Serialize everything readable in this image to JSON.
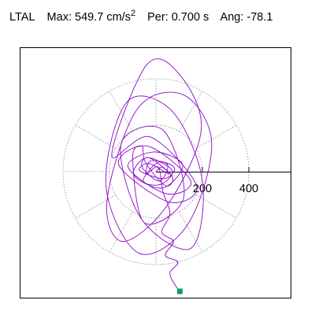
{
  "header": {
    "station": "LTAL",
    "max_label": "Max:",
    "max_value": "549.7",
    "max_unit": "cm/s",
    "max_unit_exp": "2",
    "period_label": "Per:",
    "period_value": "0.700 s",
    "angle_label": "Ang:",
    "angle_value": "-78.1"
  },
  "chart_data": {
    "type": "line",
    "plot_kind": "orbit",
    "title": "",
    "xlabel": "",
    "ylabel": "",
    "axis_ticks": [
      200,
      400
    ],
    "tick_labels": [
      "200",
      "400"
    ],
    "rings": [
      200,
      400
    ],
    "radial_spokes_deg": [
      30,
      60,
      90,
      120,
      150,
      180,
      210,
      240,
      270,
      300,
      330
    ],
    "xlim": [
      -600,
      600
    ],
    "ylim": [
      -530,
      530
    ],
    "grid": true,
    "max": 549.7,
    "angle_deg": -78.1,
    "end_marker": [
      103,
      -515
    ],
    "colors": {
      "trace": "#8a08c8",
      "marker": "#0e9a74",
      "grid": "#888888",
      "axis": "#000000"
    },
    "series": [
      {
        "x": [
          0,
          25,
          55,
          -30,
          -70,
          35,
          80,
          10,
          -55,
          20,
          70,
          -40,
          -95,
          30,
          115,
          -10,
          -120,
          45,
          150,
          -35,
          -160,
          55,
          175,
          -25,
          -190,
          -40,
          100,
          195,
          45,
          -145,
          -210,
          -80,
          120,
          240,
          135,
          -75,
          -215,
          -125,
          70,
          200,
          150,
          -65,
          -150,
          30,
          120,
          -50,
          -100,
          -60,
          -45,
          40,
          70,
          -30,
          -60,
          15,
          50,
          -25,
          -40,
          10,
          30,
          60,
          25,
          75,
          40,
          95,
          60,
          100
        ],
        "y": [
          0,
          20,
          -10,
          35,
          5,
          -30,
          15,
          40,
          -40,
          -55,
          5,
          60,
          -15,
          -70,
          30,
          85,
          20,
          -95,
          -40,
          110,
          30,
          -130,
          -60,
          150,
          70,
          460,
          420,
          180,
          -150,
          -300,
          -120,
          270,
          330,
          120,
          -230,
          -350,
          -60,
          300,
          260,
          -40,
          -330,
          -200,
          120,
          180,
          -110,
          -220,
          60,
          110,
          40,
          -60,
          -20,
          60,
          20,
          -40,
          30,
          45,
          -10,
          20,
          -85,
          -180,
          -260,
          -300,
          -360,
          -390,
          -440,
          -515
        ]
      }
    ]
  }
}
